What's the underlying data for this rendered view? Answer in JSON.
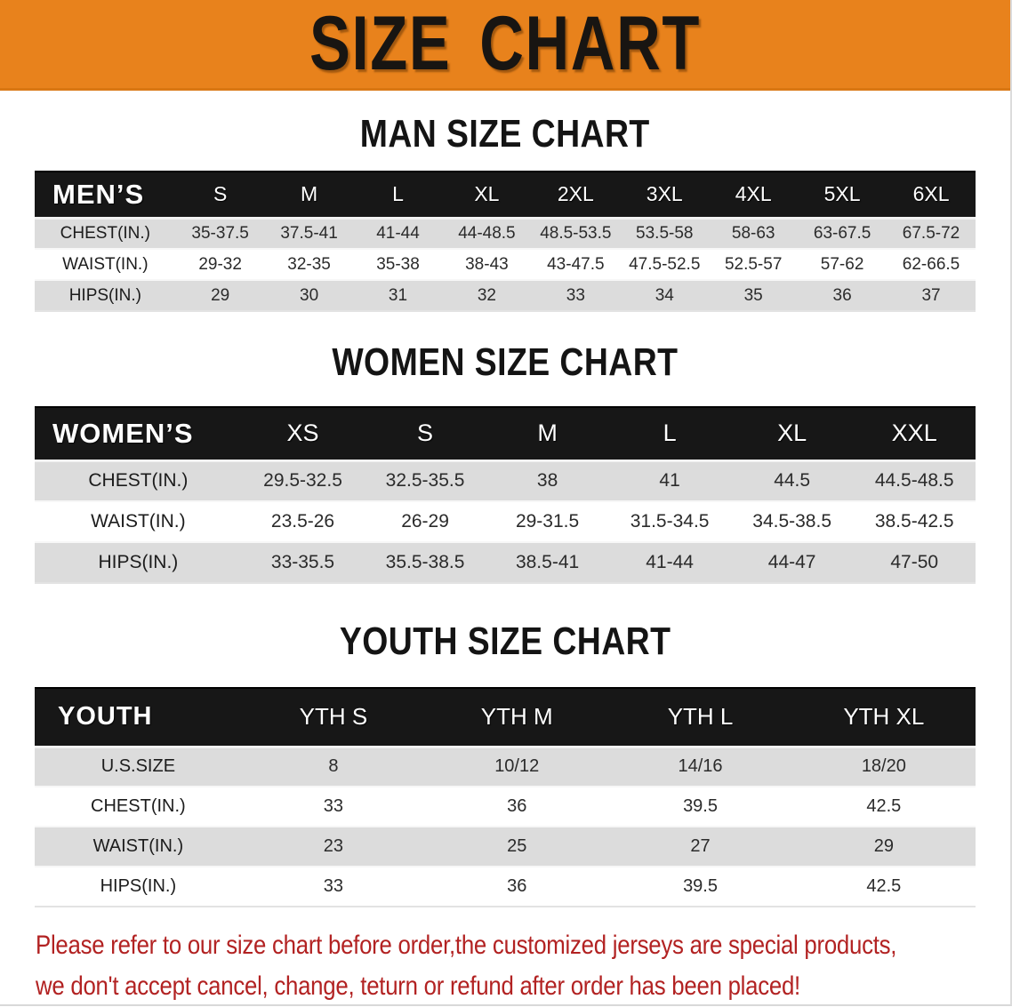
{
  "banner": {
    "title": "SIZE CHART"
  },
  "sections": {
    "men": {
      "heading": "MAN SIZE CHART"
    },
    "women": {
      "heading": "WOMEN SIZE CHART"
    },
    "youth": {
      "heading": "YOUTH SIZE CHART"
    }
  },
  "tables": {
    "men": {
      "header": [
        "MEN’S",
        "S",
        "M",
        "L",
        "XL",
        "2XL",
        "3XL",
        "4XL",
        "5XL",
        "6XL"
      ],
      "rows": [
        [
          "CHEST(IN.)",
          "35-37.5",
          "37.5-41",
          "41-44",
          "44-48.5",
          "48.5-53.5",
          "53.5-58",
          "58-63",
          "63-67.5",
          "67.5-72"
        ],
        [
          "WAIST(IN.)",
          "29-32",
          "32-35",
          "35-38",
          "38-43",
          "43-47.5",
          "47.5-52.5",
          "52.5-57",
          "57-62",
          "62-66.5"
        ],
        [
          "HIPS(IN.)",
          "29",
          "30",
          "31",
          "32",
          "33",
          "34",
          "35",
          "36",
          "37"
        ]
      ]
    },
    "women": {
      "header": [
        "WOMEN’S",
        "XS",
        "S",
        "M",
        "L",
        "XL",
        "XXL"
      ],
      "rows": [
        [
          "CHEST(IN.)",
          "29.5-32.5",
          "32.5-35.5",
          "38",
          "41",
          "44.5",
          "44.5-48.5"
        ],
        [
          "WAIST(IN.)",
          "23.5-26",
          "26-29",
          "29-31.5",
          "31.5-34.5",
          "34.5-38.5",
          "38.5-42.5"
        ],
        [
          "HIPS(IN.)",
          "33-35.5",
          "35.5-38.5",
          "38.5-41",
          "41-44",
          "44-47",
          "47-50"
        ]
      ]
    },
    "youth": {
      "header": [
        "YOUTH",
        "YTH S",
        "YTH M",
        "YTH L",
        "YTH XL"
      ],
      "rows": [
        [
          "U.S.SIZE",
          "8",
          "10/12",
          "14/16",
          "18/20"
        ],
        [
          "CHEST(IN.)",
          "33",
          "36",
          "39.5",
          "42.5"
        ],
        [
          "WAIST(IN.)",
          "23",
          "25",
          "27",
          "29"
        ],
        [
          "HIPS(IN.)",
          "33",
          "36",
          "39.5",
          "42.5"
        ]
      ]
    }
  },
  "footer": {
    "line1": "Please refer to our size chart before order,the customized jerseys are special products,",
    "line2": "we don't accept cancel, change, teturn or refund after order has been placed!"
  },
  "colors": {
    "banner_bg": "#E8821C",
    "banner_text": "#181512",
    "table_header_band": "#171717",
    "table_header_text": "#FFFFFF",
    "row_shaded": "#DCDCDC",
    "row_plain": "#FFFFFF",
    "footer_text": "#B22222"
  }
}
